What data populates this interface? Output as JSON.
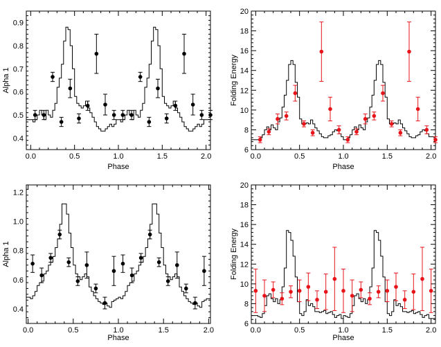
{
  "chart_data": [
    {
      "id": "top-left",
      "type": "scatter",
      "xlabel": "Phase",
      "ylabel": "Alpha 1",
      "xlim": [
        -0.05,
        2.05
      ],
      "ylim": [
        0.35,
        0.95
      ],
      "xticks": [
        0.0,
        0.5,
        1.0,
        1.5,
        2.0
      ],
      "xtick_labels": [
        "0.0",
        "0.5",
        "1.0",
        "1.5",
        "2.0"
      ],
      "yticks": [
        0.4,
        0.5,
        0.6,
        0.7,
        0.8,
        0.9
      ],
      "ytick_labels": [
        "0.4",
        "0.5",
        "0.6",
        "0.7",
        "0.8",
        "0.9"
      ],
      "marker_color": "#000000",
      "points": [
        {
          "x": 0.05,
          "y": 0.5,
          "err": 0.02
        },
        {
          "x": 0.15,
          "y": 0.5,
          "err": 0.02
        },
        {
          "x": 0.25,
          "y": 0.665,
          "err": 0.02
        },
        {
          "x": 0.35,
          "y": 0.47,
          "err": 0.02
        },
        {
          "x": 0.45,
          "y": 0.615,
          "err": 0.04
        },
        {
          "x": 0.55,
          "y": 0.485,
          "err": 0.02
        },
        {
          "x": 0.65,
          "y": 0.54,
          "err": 0.02
        },
        {
          "x": 0.75,
          "y": 0.765,
          "err": 0.085
        },
        {
          "x": 0.85,
          "y": 0.545,
          "err": 0.045
        },
        {
          "x": 0.95,
          "y": 0.5,
          "err": 0.02
        },
        {
          "x": 1.05,
          "y": 0.5,
          "err": 0.02
        },
        {
          "x": 1.15,
          "y": 0.5,
          "err": 0.02
        },
        {
          "x": 1.25,
          "y": 0.665,
          "err": 0.02
        },
        {
          "x": 1.35,
          "y": 0.47,
          "err": 0.02
        },
        {
          "x": 1.45,
          "y": 0.615,
          "err": 0.04
        },
        {
          "x": 1.55,
          "y": 0.485,
          "err": 0.02
        },
        {
          "x": 1.65,
          "y": 0.54,
          "err": 0.02
        },
        {
          "x": 1.75,
          "y": 0.765,
          "err": 0.085
        },
        {
          "x": 1.85,
          "y": 0.545,
          "err": 0.045
        },
        {
          "x": 1.95,
          "y": 0.5,
          "err": 0.02
        },
        {
          "x": 2.05,
          "y": 0.5,
          "err": 0.02
        }
      ],
      "profile": {
        "ylim": [
          0.35,
          0.95
        ],
        "halfcycle": [
          0.48,
          0.47,
          0.48,
          0.5,
          0.52,
          0.5,
          0.48,
          0.52,
          0.5,
          0.49,
          0.52,
          0.55,
          0.62,
          0.66,
          0.72,
          0.82,
          0.88,
          0.87,
          0.8,
          0.7,
          0.58,
          0.55,
          0.54,
          0.53,
          0.54,
          0.56,
          0.53,
          0.51,
          0.49,
          0.47,
          0.45,
          0.44,
          0.43,
          0.43,
          0.44,
          0.45,
          0.46,
          0.45,
          0.46,
          0.48
        ]
      }
    },
    {
      "id": "top-right",
      "type": "scatter",
      "xlabel": "Phase",
      "ylabel": "Folding Energy",
      "xlim": [
        -0.05,
        2.05
      ],
      "ylim": [
        6,
        20
      ],
      "xticks": [
        0.0,
        0.5,
        1.0,
        1.5,
        2.0
      ],
      "xtick_labels": [
        "0.0",
        "0.5",
        "1.0",
        "1.5",
        "2.0"
      ],
      "yticks": [
        6,
        8,
        10,
        12,
        14,
        16,
        18,
        20
      ],
      "ytick_labels": [
        "6",
        "8",
        "10",
        "12",
        "14",
        "16",
        "18",
        "20"
      ],
      "marker_color": "#e8141a",
      "points": [
        {
          "x": 0.05,
          "y": 7.0,
          "err": 0.3
        },
        {
          "x": 0.15,
          "y": 7.8,
          "err": 0.3
        },
        {
          "x": 0.25,
          "y": 9.1,
          "err": 0.5
        },
        {
          "x": 0.35,
          "y": 9.4,
          "err": 0.4
        },
        {
          "x": 0.45,
          "y": 11.7,
          "err": 0.8
        },
        {
          "x": 0.55,
          "y": 8.6,
          "err": 0.3
        },
        {
          "x": 0.65,
          "y": 7.7,
          "err": 0.3
        },
        {
          "x": 0.75,
          "y": 15.9,
          "err": 3.0
        },
        {
          "x": 0.85,
          "y": 10.1,
          "err": 1.2
        },
        {
          "x": 0.95,
          "y": 8.0,
          "err": 0.4
        },
        {
          "x": 1.05,
          "y": 7.0,
          "err": 0.3
        },
        {
          "x": 1.15,
          "y": 7.8,
          "err": 0.3
        },
        {
          "x": 1.25,
          "y": 9.1,
          "err": 0.5
        },
        {
          "x": 1.35,
          "y": 9.4,
          "err": 0.4
        },
        {
          "x": 1.45,
          "y": 11.7,
          "err": 0.8
        },
        {
          "x": 1.55,
          "y": 8.6,
          "err": 0.3
        },
        {
          "x": 1.65,
          "y": 7.7,
          "err": 0.3
        },
        {
          "x": 1.75,
          "y": 15.9,
          "err": 3.0
        },
        {
          "x": 1.85,
          "y": 10.1,
          "err": 1.2
        },
        {
          "x": 1.95,
          "y": 8.0,
          "err": 0.4
        },
        {
          "x": 2.05,
          "y": 7.0,
          "err": 0.3
        }
      ],
      "profile": {
        "ylim": [
          6,
          20
        ],
        "halfcycle": [
          7.0,
          7.0,
          7.2,
          7.5,
          8.0,
          8.3,
          8.0,
          8.5,
          8.2,
          8.0,
          8.8,
          9.2,
          10.3,
          11.5,
          13.0,
          14.6,
          15.0,
          14.6,
          12.8,
          11.3,
          9.1,
          8.6,
          8.6,
          8.7,
          8.6,
          9.0,
          8.6,
          8.2,
          7.9,
          7.6,
          7.3,
          7.2,
          7.2,
          7.4,
          7.5,
          7.8,
          8.0,
          7.9,
          7.6,
          7.3
        ]
      }
    },
    {
      "id": "bottom-left",
      "type": "scatter",
      "xlabel": "Phase",
      "ylabel": "Alpha 1",
      "xlim": [
        -0.02,
        2.02
      ],
      "ylim": [
        0.3,
        1.25
      ],
      "xticks": [
        0.0,
        0.5,
        1.0,
        1.5,
        2.0
      ],
      "xtick_labels": [
        "0.0",
        "0.5",
        "1.0",
        "1.5",
        "2.0"
      ],
      "yticks": [
        0.4,
        0.6,
        0.8,
        1.0,
        1.2
      ],
      "ytick_labels": [
        "0.4",
        "0.6",
        "0.8",
        "1.0",
        "1.2"
      ],
      "marker_color": "#000000",
      "points": [
        {
          "x": 0.05,
          "y": 0.71,
          "err": 0.06
        },
        {
          "x": 0.15,
          "y": 0.63,
          "err": 0.05
        },
        {
          "x": 0.25,
          "y": 0.75,
          "err": 0.03
        },
        {
          "x": 0.35,
          "y": 0.91,
          "err": 0.03
        },
        {
          "x": 0.45,
          "y": 0.72,
          "err": 0.03
        },
        {
          "x": 0.55,
          "y": 0.59,
          "err": 0.03
        },
        {
          "x": 0.65,
          "y": 0.7,
          "err": 0.09
        },
        {
          "x": 0.75,
          "y": 0.54,
          "err": 0.03
        },
        {
          "x": 0.85,
          "y": 0.44,
          "err": 0.04
        },
        {
          "x": 0.95,
          "y": 0.66,
          "err": 0.1
        },
        {
          "x": 1.05,
          "y": 0.71,
          "err": 0.06
        },
        {
          "x": 1.15,
          "y": 0.63,
          "err": 0.05
        },
        {
          "x": 1.25,
          "y": 0.75,
          "err": 0.03
        },
        {
          "x": 1.35,
          "y": 0.91,
          "err": 0.03
        },
        {
          "x": 1.45,
          "y": 0.72,
          "err": 0.03
        },
        {
          "x": 1.55,
          "y": 0.59,
          "err": 0.03
        },
        {
          "x": 1.65,
          "y": 0.7,
          "err": 0.09
        },
        {
          "x": 1.75,
          "y": 0.54,
          "err": 0.03
        },
        {
          "x": 1.85,
          "y": 0.44,
          "err": 0.04
        },
        {
          "x": 1.95,
          "y": 0.66,
          "err": 0.1
        }
      ],
      "profile": {
        "ylim": [
          0.3,
          1.25
        ],
        "halfcycle": [
          0.48,
          0.47,
          0.49,
          0.52,
          0.56,
          0.58,
          0.59,
          0.64,
          0.66,
          0.7,
          0.72,
          0.76,
          0.82,
          0.88,
          0.98,
          1.12,
          1.12,
          1.05,
          0.92,
          0.82,
          0.7,
          0.64,
          0.62,
          0.6,
          0.62,
          0.64,
          0.62,
          0.55,
          0.52,
          0.49,
          0.47,
          0.45,
          0.44,
          0.43,
          0.44,
          0.42,
          0.41,
          0.45,
          0.46,
          0.47
        ]
      }
    },
    {
      "id": "bottom-right",
      "type": "scatter",
      "xlabel": "Phase",
      "ylabel": "Folding Energy",
      "xlim": [
        -0.05,
        2.05
      ],
      "ylim": [
        6,
        20
      ],
      "xticks": [
        0.0,
        0.5,
        1.0,
        1.5,
        2.0
      ],
      "xtick_labels": [
        "0.0",
        "0.5",
        "1.0",
        "1.5",
        "2.0"
      ],
      "yticks": [
        6,
        8,
        10,
        12,
        14,
        16,
        18,
        20
      ],
      "ytick_labels": [
        "6",
        "8",
        "10",
        "12",
        "14",
        "16",
        "18",
        "20"
      ],
      "marker_color": "#e8141a",
      "points": [
        {
          "x": 0.0,
          "y": 9.3,
          "err": 2.2
        },
        {
          "x": 0.1,
          "y": 8.8,
          "err": 1.6
        },
        {
          "x": 0.2,
          "y": 9.4,
          "err": 0.8
        },
        {
          "x": 0.3,
          "y": 8.5,
          "err": 0.6
        },
        {
          "x": 0.4,
          "y": 9.2,
          "err": 0.6
        },
        {
          "x": 0.5,
          "y": 9.3,
          "err": 1.1
        },
        {
          "x": 0.6,
          "y": 9.7,
          "err": 1.4
        },
        {
          "x": 0.7,
          "y": 8.4,
          "err": 0.9
        },
        {
          "x": 0.8,
          "y": 9.2,
          "err": 1.8
        },
        {
          "x": 0.9,
          "y": 10.5,
          "err": 3.2
        },
        {
          "x": 1.0,
          "y": 9.3,
          "err": 2.2
        },
        {
          "x": 1.1,
          "y": 8.8,
          "err": 1.6
        },
        {
          "x": 1.2,
          "y": 9.4,
          "err": 0.8
        },
        {
          "x": 1.3,
          "y": 8.5,
          "err": 0.6
        },
        {
          "x": 1.4,
          "y": 9.2,
          "err": 0.6
        },
        {
          "x": 1.5,
          "y": 9.3,
          "err": 1.1
        },
        {
          "x": 1.6,
          "y": 9.7,
          "err": 1.4
        },
        {
          "x": 1.7,
          "y": 8.4,
          "err": 0.9
        },
        {
          "x": 1.8,
          "y": 9.2,
          "err": 1.8
        },
        {
          "x": 1.9,
          "y": 10.5,
          "err": 3.2
        },
        {
          "x": 2.0,
          "y": 9.3,
          "err": 2.2
        }
      ],
      "profile": {
        "ylim": [
          6,
          20
        ],
        "halfcycle": [
          6.8,
          6.7,
          6.6,
          7.0,
          7.8,
          8.8,
          9.0,
          8.5,
          8.2,
          8.5,
          8.0,
          8.4,
          9.7,
          11.6,
          15.4,
          15.2,
          14.4,
          12.8,
          10.7,
          8.2,
          7.0,
          6.8,
          7.2,
          8.4,
          7.8,
          8.0,
          7.7,
          7.2,
          7.2,
          7.1,
          7.2,
          7.3,
          7.0,
          7.1,
          7.2,
          6.9,
          6.6,
          6.8,
          6.9,
          6.5
        ]
      }
    }
  ]
}
